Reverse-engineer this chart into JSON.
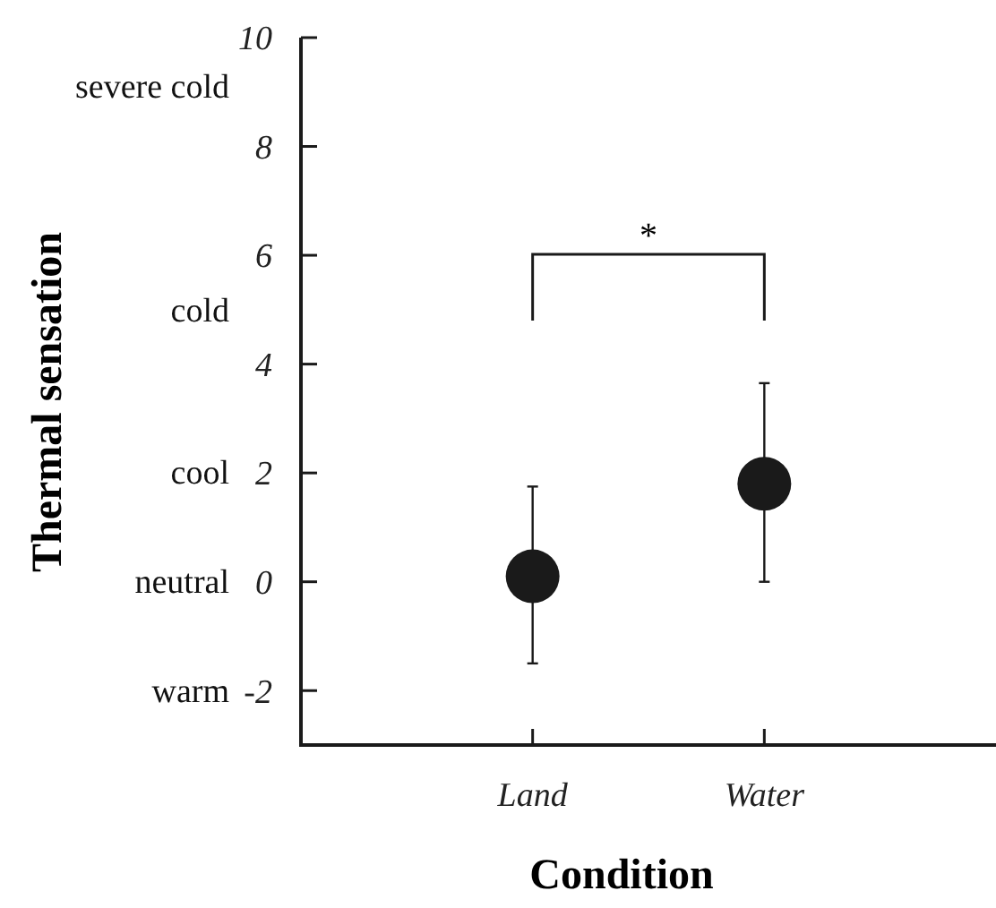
{
  "chart_data": {
    "type": "scatter",
    "xlabel": "Condition",
    "ylabel": "Thermal sensation",
    "categories": [
      "Land",
      "Water"
    ],
    "series": [
      {
        "color": "#1a1a1a",
        "values": [
          0.1,
          1.8
        ],
        "errors": [
          [
            -1.5,
            1.75
          ],
          [
            0,
            3.65
          ]
        ]
      }
    ],
    "ylim": [
      -3,
      10
    ],
    "yticks": [
      -2,
      0,
      2,
      4,
      6,
      8,
      10
    ],
    "annotations": [
      "*",
      "severe cold",
      "cold",
      "cool",
      "neutral",
      "warm"
    ],
    "marker": "circle",
    "grid": false
  }
}
